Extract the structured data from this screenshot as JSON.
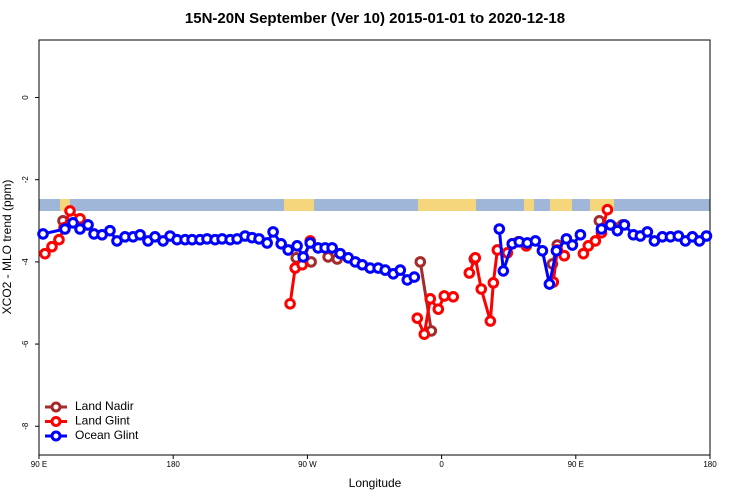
{
  "chart_data": {
    "type": "scatter",
    "title": "15N-20N September (Ver 10)   2015-01-01 to 2020-12-18",
    "x_label": "Longitude",
    "y_label": "XCO2 - MLO trend (ppm)",
    "xlim": [
      90,
      540
    ],
    "ylim": [
      -8.7,
      1.4
    ],
    "xticks": [
      {
        "value": 90,
        "label": "90 E"
      },
      180,
      {
        "value": 270,
        "label": "90 W"
      },
      {
        "value": 360,
        "label": "0"
      },
      {
        "value": 450,
        "label": "90 E"
      },
      {
        "value": 540,
        "label": "180"
      }
    ],
    "yticks": [
      0,
      -2,
      -4,
      -6,
      -8
    ],
    "legend": "bottom-left",
    "series": [
      {
        "name": "Land Nadir",
        "color": "#a52a2a",
        "x": [
          106.1,
          null,
          262.5,
          267.8,
          272.5,
          null,
          283.9,
          290.0,
          null,
          345.7,
          353.1,
          null,
          381.9,
          null,
          434.3,
          437.6,
          null,
          465.8,
          481.3
        ],
        "values": [
          -3.0,
          null,
          -3.9,
          -3.93,
          -4.0,
          null,
          -3.88,
          -3.93,
          null,
          -4.0,
          -5.68,
          null,
          -3.93,
          null,
          -4.05,
          -3.59,
          null,
          -3.0,
          -3.1
        ]
      },
      {
        "name": "Land Glint",
        "color": "#ff0000",
        "x": [
          94.0,
          98.7,
          103.4,
          106.8,
          110.8,
          117.5,
          122.2,
          null,
          258.4,
          261.8,
          266.5,
          271.9,
          null,
          343.7,
          348.4,
          352.4,
          357.8,
          361.8,
          367.8,
          null,
          378.6,
          382.6,
          386.6,
          392.7,
          394.7,
          397.4,
          404.1,
          407.4,
          411.5,
          416.8,
          null,
          434.9,
          437.6,
          442.3,
          null,
          455.1,
          458.4,
          463.1,
          467.2,
          471.2
        ],
        "values": [
          -3.8,
          -3.63,
          -3.46,
          -3.17,
          -2.76,
          -2.95,
          -3.1,
          null,
          -5.02,
          -4.15,
          -4.07,
          -3.49,
          null,
          -5.37,
          -5.76,
          -4.9,
          -5.15,
          -4.83,
          -4.85,
          null,
          -4.27,
          -3.9,
          -4.66,
          -5.44,
          -4.51,
          -3.71,
          -3.78,
          -3.56,
          -3.51,
          -3.61,
          null,
          -4.49,
          -3.71,
          -3.85,
          null,
          -3.8,
          -3.61,
          -3.49,
          -3.29,
          -2.73
        ]
      },
      {
        "name": "Ocean Glint",
        "color": "#0000ff",
        "x": [
          92.7,
          107.4,
          112.8,
          117.5,
          122.9,
          126.9,
          132.3,
          137.6,
          142.3,
          147.7,
          153.1,
          157.8,
          163.1,
          167.8,
          173.2,
          177.9,
          182.6,
          188.0,
          192.7,
          198.0,
          202.7,
          208.1,
          212.8,
          218.2,
          222.9,
          228.2,
          232.9,
          237.6,
          243.0,
          247.0,
          252.4,
          257.1,
          263.1,
          267.2,
          271.9,
          277.2,
          281.9,
          286.6,
          292.0,
          297.4,
          302.1,
          306.8,
          312.1,
          317.5,
          322.2,
          327.6,
          332.3,
          337.0,
          341.7,
          null,
          398.7,
          401.4,
          407.4,
          412.1,
          417.5,
          422.9,
          427.6,
          432.3,
          437.0,
          443.7,
          447.7,
          453.1,
          null,
          467.2,
          473.2,
          477.9,
          482.6,
          488.6,
          493.3,
          498.0,
          502.7,
          508.1,
          513.5,
          518.8,
          523.5,
          528.2,
          532.9,
          537.6
        ],
        "values": [
          -3.32,
          -3.2,
          -3.05,
          -3.2,
          -3.1,
          -3.32,
          -3.34,
          -3.24,
          -3.49,
          -3.39,
          -3.39,
          -3.34,
          -3.49,
          -3.39,
          -3.49,
          -3.37,
          -3.46,
          -3.46,
          -3.46,
          -3.46,
          -3.44,
          -3.46,
          -3.44,
          -3.46,
          -3.44,
          -3.37,
          -3.41,
          -3.44,
          -3.54,
          -3.27,
          -3.56,
          -3.71,
          -3.61,
          -3.88,
          -3.54,
          -3.66,
          -3.66,
          -3.66,
          -3.8,
          -3.9,
          -4.0,
          -4.07,
          -4.15,
          -4.15,
          -4.2,
          -4.29,
          -4.2,
          -4.44,
          -4.37,
          null,
          -3.2,
          -4.22,
          -3.56,
          -3.51,
          -3.54,
          -3.49,
          -3.73,
          -4.54,
          -3.73,
          -3.44,
          -3.59,
          -3.34,
          null,
          -3.2,
          -3.1,
          -3.24,
          -3.1,
          -3.34,
          -3.37,
          -3.27,
          -3.49,
          -3.39,
          -3.39,
          -3.37,
          -3.49,
          -3.39,
          -3.49,
          -3.37
        ]
      }
    ]
  }
}
